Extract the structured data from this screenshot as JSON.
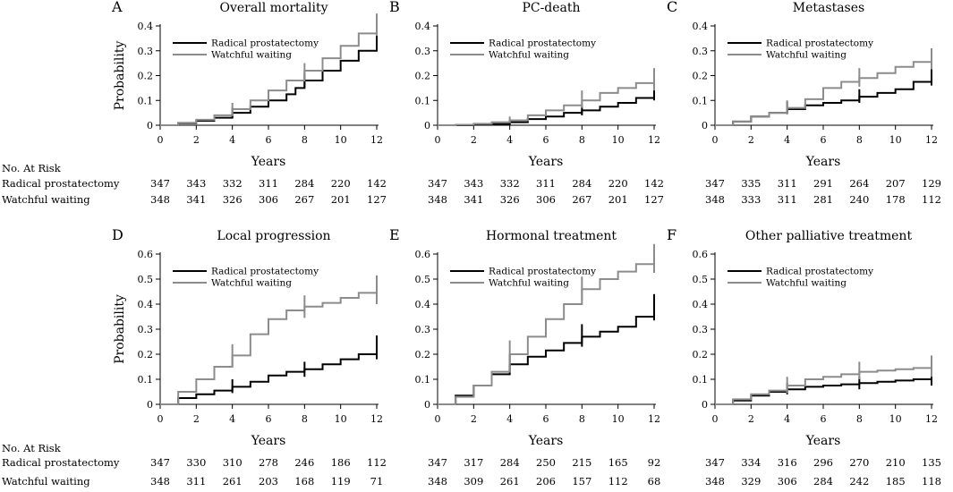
{
  "colors": {
    "radical": "#000000",
    "watchful": "#8c8c8c"
  },
  "risk_labels": {
    "header": "No. At Risk",
    "radical": "Radical prostatectomy",
    "watchful": "Watchful waiting"
  },
  "chart_data": [
    {
      "type": "line",
      "letter": "A",
      "title": "Overall mortality",
      "xlabel": "Years",
      "ylabel": "Probability",
      "xlim": [
        0,
        12
      ],
      "ylim": [
        0,
        0.4
      ],
      "xticks": [
        0,
        2,
        4,
        6,
        8,
        10,
        12
      ],
      "yticks": [
        0,
        0.1,
        0.2,
        0.3,
        0.4
      ],
      "legend": "top-left",
      "series": [
        {
          "name": "Radical prostatectomy",
          "key": "radical",
          "x": [
            0,
            1,
            2,
            3,
            4,
            5,
            6,
            7,
            7.5,
            8,
            9,
            10,
            11,
            12
          ],
          "y": [
            0,
            0.008,
            0.018,
            0.03,
            0.05,
            0.075,
            0.1,
            0.125,
            0.15,
            0.18,
            0.22,
            0.26,
            0.3,
            0.35
          ],
          "ci_at": [
            4,
            8,
            12
          ],
          "ci_low": [
            0.03,
            0.15,
            0.3
          ],
          "ci_high": [
            0.07,
            0.21,
            0.39
          ]
        },
        {
          "name": "Watchful waiting",
          "key": "watchful",
          "x": [
            0,
            1,
            2,
            3,
            4,
            5,
            6,
            7,
            8,
            9,
            10,
            11,
            12
          ],
          "y": [
            0,
            0.01,
            0.022,
            0.04,
            0.065,
            0.1,
            0.14,
            0.18,
            0.22,
            0.27,
            0.32,
            0.37,
            0.4
          ],
          "ci_at": [
            4,
            8,
            12
          ],
          "ci_low": [
            0.04,
            0.19,
            0.36
          ],
          "ci_high": [
            0.09,
            0.25,
            0.45
          ]
        }
      ],
      "risk": {
        "x": [
          0,
          2,
          4,
          6,
          8,
          10,
          12
        ],
        "radical": [
          347,
          343,
          332,
          311,
          284,
          220,
          142
        ],
        "watchful": [
          348,
          341,
          326,
          306,
          267,
          201,
          127
        ]
      },
      "show_risk_header": true
    },
    {
      "type": "line",
      "letter": "B",
      "title": "PC-death",
      "xlabel": "Years",
      "ylabel": "",
      "xlim": [
        0,
        12
      ],
      "ylim": [
        0,
        0.4
      ],
      "xticks": [
        0,
        2,
        4,
        6,
        8,
        10,
        12
      ],
      "yticks": [
        0,
        0.1,
        0.2,
        0.3,
        0.4
      ],
      "legend": "top-left",
      "series": [
        {
          "name": "Radical prostatectomy",
          "key": "radical",
          "x": [
            0,
            1,
            2,
            3,
            4,
            5,
            6,
            7,
            8,
            9,
            10,
            11,
            12
          ],
          "y": [
            0,
            0,
            0.002,
            0.005,
            0.012,
            0.025,
            0.035,
            0.05,
            0.06,
            0.075,
            0.09,
            0.11,
            0.13
          ],
          "ci_at": [
            4,
            8,
            12
          ],
          "ci_low": [
            0.003,
            0.04,
            0.1
          ],
          "ci_high": [
            0.02,
            0.08,
            0.16
          ]
        },
        {
          "name": "Watchful waiting",
          "key": "watchful",
          "x": [
            0,
            1,
            2,
            3,
            4,
            5,
            6,
            7,
            8,
            9,
            10,
            11,
            12
          ],
          "y": [
            0,
            0.002,
            0.006,
            0.012,
            0.02,
            0.04,
            0.06,
            0.08,
            0.1,
            0.13,
            0.15,
            0.17,
            0.185
          ],
          "ci_at": [
            4,
            8,
            12
          ],
          "ci_low": [
            0.01,
            0.07,
            0.14
          ],
          "ci_high": [
            0.035,
            0.14,
            0.23
          ]
        }
      ],
      "risk": {
        "x": [
          0,
          2,
          4,
          6,
          8,
          10,
          12
        ],
        "radical": [
          347,
          343,
          332,
          311,
          284,
          220,
          142
        ],
        "watchful": [
          348,
          341,
          326,
          306,
          267,
          201,
          127
        ]
      },
      "show_risk_header": false
    },
    {
      "type": "line",
      "letter": "C",
      "title": "Metastases",
      "xlabel": "Years",
      "ylabel": "",
      "xlim": [
        0,
        12
      ],
      "ylim": [
        0,
        0.4
      ],
      "xticks": [
        0,
        2,
        4,
        6,
        8,
        10,
        12
      ],
      "yticks": [
        0,
        0.1,
        0.2,
        0.3,
        0.4
      ],
      "legend": "top-left",
      "series": [
        {
          "name": "Radical prostatectomy",
          "key": "radical",
          "x": [
            0,
            1,
            2,
            3,
            4,
            5,
            6,
            7,
            8,
            9,
            10,
            11,
            12
          ],
          "y": [
            0,
            0.015,
            0.035,
            0.05,
            0.065,
            0.08,
            0.09,
            0.1,
            0.115,
            0.13,
            0.145,
            0.175,
            0.195
          ],
          "ci_at": [
            4,
            8,
            12
          ],
          "ci_low": [
            0.045,
            0.09,
            0.16
          ],
          "ci_high": [
            0.095,
            0.145,
            0.24
          ]
        },
        {
          "name": "Watchful waiting",
          "key": "watchful",
          "x": [
            0,
            1,
            2,
            3,
            4,
            5,
            6,
            7,
            8,
            9,
            10,
            11,
            12
          ],
          "y": [
            0,
            0.015,
            0.035,
            0.05,
            0.07,
            0.105,
            0.15,
            0.175,
            0.19,
            0.21,
            0.235,
            0.255,
            0.265
          ],
          "ci_at": [
            4,
            8,
            12
          ],
          "ci_low": [
            0.05,
            0.155,
            0.225
          ],
          "ci_high": [
            0.1,
            0.23,
            0.31
          ]
        }
      ],
      "risk": {
        "x": [
          0,
          2,
          4,
          6,
          8,
          10,
          12
        ],
        "radical": [
          347,
          335,
          311,
          291,
          264,
          207,
          129
        ],
        "watchful": [
          348,
          333,
          311,
          281,
          240,
          178,
          112
        ]
      },
      "show_risk_header": false
    },
    {
      "type": "line",
      "letter": "D",
      "title": "Local progression",
      "xlabel": "Years",
      "ylabel": "Probability",
      "xlim": [
        0,
        12
      ],
      "ylim": [
        0,
        0.6
      ],
      "xticks": [
        0,
        2,
        4,
        6,
        8,
        10,
        12
      ],
      "yticks": [
        0,
        0.1,
        0.2,
        0.3,
        0.4,
        0.5,
        0.6
      ],
      "legend": "top-left",
      "series": [
        {
          "name": "Radical prostatectomy",
          "key": "radical",
          "x": [
            0,
            1,
            2,
            3,
            4,
            5,
            6,
            7,
            8,
            9,
            10,
            11,
            12
          ],
          "y": [
            0,
            0.025,
            0.04,
            0.055,
            0.07,
            0.09,
            0.115,
            0.13,
            0.14,
            0.16,
            0.18,
            0.2,
            0.225
          ],
          "ci_at": [
            4,
            8,
            12
          ],
          "ci_low": [
            0.045,
            0.11,
            0.18
          ],
          "ci_high": [
            0.1,
            0.17,
            0.275
          ]
        },
        {
          "name": "Watchful waiting",
          "key": "watchful",
          "x": [
            0,
            1,
            2,
            3,
            4,
            5,
            6,
            7,
            8,
            9,
            10,
            11,
            12
          ],
          "y": [
            0,
            0.05,
            0.1,
            0.15,
            0.195,
            0.28,
            0.34,
            0.375,
            0.39,
            0.405,
            0.425,
            0.445,
            0.455
          ],
          "ci_at": [
            4,
            8,
            12
          ],
          "ci_low": [
            0.15,
            0.345,
            0.4
          ],
          "ci_high": [
            0.24,
            0.435,
            0.515
          ]
        }
      ],
      "risk": {
        "x": [
          0,
          2,
          4,
          6,
          8,
          10,
          12
        ],
        "radical": [
          347,
          330,
          310,
          278,
          246,
          186,
          112
        ],
        "watchful": [
          348,
          311,
          261,
          203,
          168,
          119,
          71
        ]
      },
      "show_risk_header": true
    },
    {
      "type": "line",
      "letter": "E",
      "title": "Hormonal treatment",
      "xlabel": "Years",
      "ylabel": "",
      "xlim": [
        0,
        12
      ],
      "ylim": [
        0,
        0.6
      ],
      "xticks": [
        0,
        2,
        4,
        6,
        8,
        10,
        12
      ],
      "yticks": [
        0,
        0.1,
        0.2,
        0.3,
        0.4,
        0.5,
        0.6
      ],
      "legend": "top-left",
      "series": [
        {
          "name": "Radical prostatectomy",
          "key": "radical",
          "x": [
            0,
            1,
            2,
            3,
            4,
            5,
            6,
            7,
            8,
            9,
            10,
            11,
            12
          ],
          "y": [
            0,
            0.035,
            0.075,
            0.12,
            0.16,
            0.19,
            0.215,
            0.245,
            0.27,
            0.29,
            0.31,
            0.35,
            0.385
          ],
          "ci_at": [
            4,
            8,
            12
          ],
          "ci_low": [
            0.125,
            0.23,
            0.335
          ],
          "ci_high": [
            0.2,
            0.32,
            0.44
          ]
        },
        {
          "name": "Watchful waiting",
          "key": "watchful",
          "x": [
            0,
            1,
            2,
            3,
            4,
            5,
            6,
            7,
            8,
            9,
            10,
            11,
            12
          ],
          "y": [
            0,
            0.03,
            0.075,
            0.13,
            0.2,
            0.27,
            0.34,
            0.4,
            0.46,
            0.5,
            0.53,
            0.56,
            0.585
          ],
          "ci_at": [
            4,
            8,
            12
          ],
          "ci_low": [
            0.16,
            0.415,
            0.525
          ],
          "ci_high": [
            0.255,
            0.51,
            0.64
          ]
        }
      ],
      "risk": {
        "x": [
          0,
          2,
          4,
          6,
          8,
          10,
          12
        ],
        "radical": [
          347,
          317,
          284,
          250,
          215,
          165,
          92
        ],
        "watchful": [
          348,
          309,
          261,
          206,
          157,
          112,
          68
        ]
      },
      "show_risk_header": false
    },
    {
      "type": "line",
      "letter": "F",
      "title": "Other palliative treatment",
      "xlabel": "Years",
      "ylabel": "",
      "xlim": [
        0,
        12
      ],
      "ylim": [
        0,
        0.6
      ],
      "xticks": [
        0,
        2,
        4,
        6,
        8,
        10,
        12
      ],
      "yticks": [
        0,
        0.1,
        0.2,
        0.3,
        0.4,
        0.5,
        0.6
      ],
      "legend": "top-left",
      "series": [
        {
          "name": "Radical prostatectomy",
          "key": "radical",
          "x": [
            0,
            1,
            2,
            3,
            4,
            5,
            6,
            7,
            8,
            9,
            10,
            11,
            12
          ],
          "y": [
            0,
            0.015,
            0.035,
            0.05,
            0.06,
            0.07,
            0.075,
            0.08,
            0.085,
            0.09,
            0.095,
            0.1,
            0.105
          ],
          "ci_at": [
            4,
            8,
            12
          ],
          "ci_low": [
            0.04,
            0.06,
            0.075
          ],
          "ci_high": [
            0.085,
            0.11,
            0.135
          ]
        },
        {
          "name": "Watchful waiting",
          "key": "watchful",
          "x": [
            0,
            1,
            2,
            3,
            4,
            5,
            6,
            7,
            8,
            9,
            10,
            11,
            12
          ],
          "y": [
            0,
            0.02,
            0.04,
            0.055,
            0.075,
            0.1,
            0.11,
            0.12,
            0.13,
            0.135,
            0.14,
            0.145,
            0.15
          ],
          "ci_at": [
            4,
            8,
            12
          ],
          "ci_low": [
            0.045,
            0.1,
            0.11
          ],
          "ci_high": [
            0.11,
            0.17,
            0.195
          ]
        }
      ],
      "risk": {
        "x": [
          0,
          2,
          4,
          6,
          8,
          10,
          12
        ],
        "radical": [
          347,
          334,
          316,
          296,
          270,
          210,
          135
        ],
        "watchful": [
          348,
          329,
          306,
          284,
          242,
          185,
          118
        ]
      },
      "show_risk_header": false
    }
  ]
}
